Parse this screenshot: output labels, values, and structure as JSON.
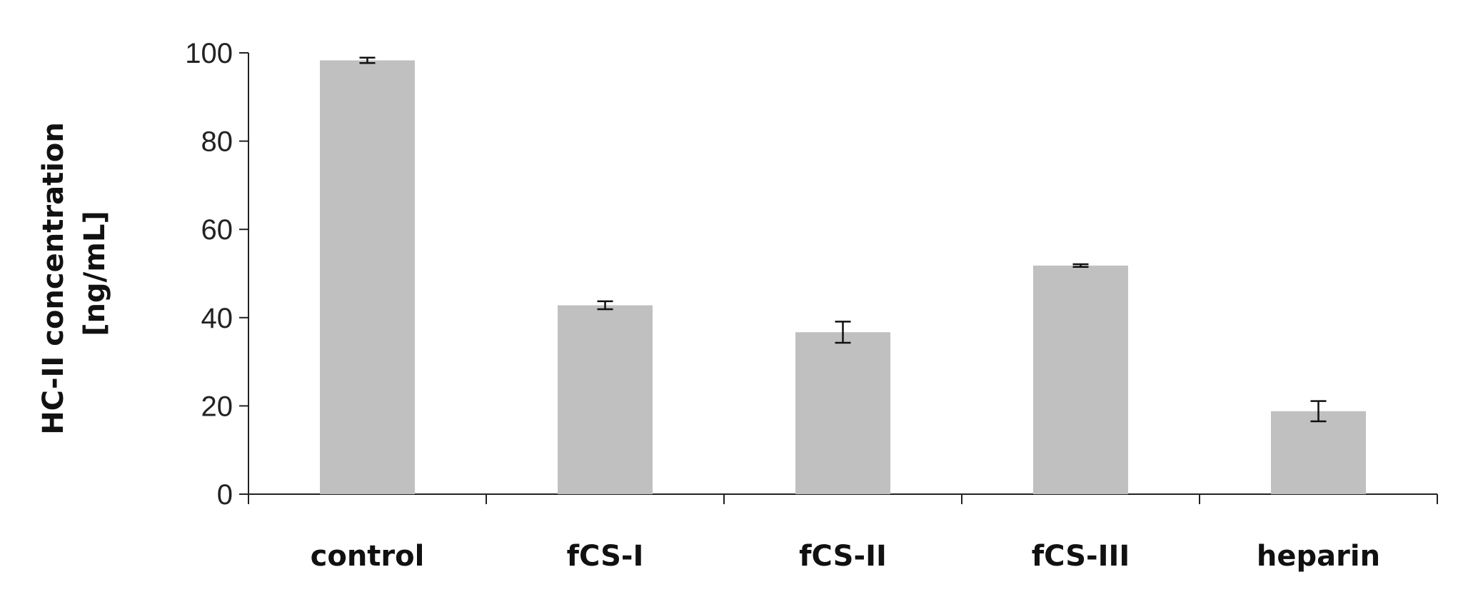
{
  "chart_data": {
    "type": "bar",
    "title": "",
    "xlabel": "",
    "ylabel": "HC-II concentration [ng/mL]",
    "ylabel_lines": [
      "HC-II concentration",
      "[ng/mL]"
    ],
    "categories": [
      "control",
      "fCS-I",
      "fCS-II",
      "fCS-III",
      "heparin"
    ],
    "values": [
      98.3,
      42.8,
      36.7,
      51.8,
      18.8
    ],
    "errors": [
      0.6,
      0.9,
      2.4,
      0.3,
      2.3
    ],
    "ylim": [
      0,
      100
    ],
    "yticks": [
      0,
      20,
      40,
      60,
      80,
      100
    ],
    "grid": false,
    "legend": "none",
    "colors": {
      "bar": "#c0c0c0",
      "axis": "#222222",
      "error_bar": "#111111"
    }
  }
}
